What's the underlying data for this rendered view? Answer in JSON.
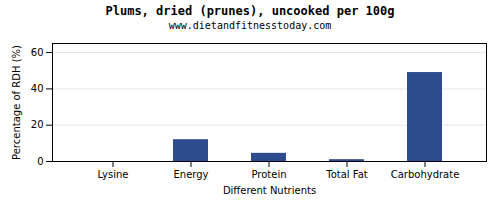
{
  "chart_data": {
    "type": "bar",
    "title": "Plums, dried (prunes), uncooked per 100g",
    "subtitle": "www.dietandfitnesstoday.com",
    "xlabel": "Different Nutrients",
    "ylabel": "Percentage of RDH (%)",
    "categories": [
      "Lysine",
      "Energy",
      "Protein",
      "Total Fat",
      "Carbohydrate"
    ],
    "values": [
      0,
      12,
      4.5,
      1,
      49
    ],
    "color": "#2e4b8e",
    "ylim": [
      0,
      65
    ],
    "yticks": [
      0,
      20,
      40,
      60
    ],
    "grid": true
  }
}
